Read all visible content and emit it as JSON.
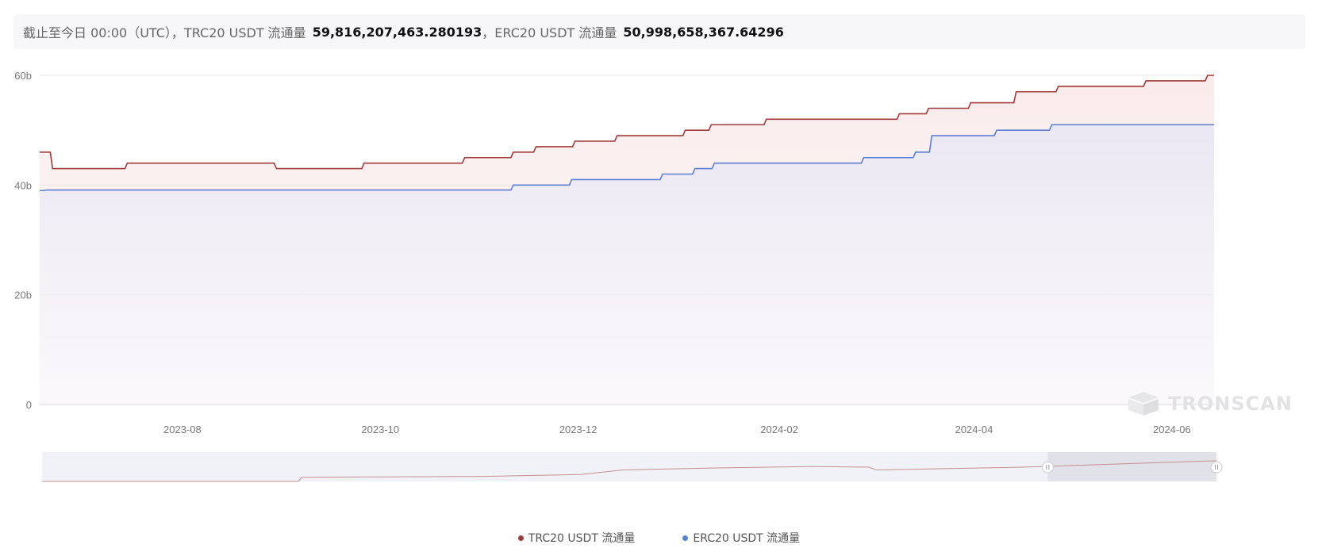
{
  "header": {
    "prefix": "截止至今日 00:00（UTC），",
    "trc_label": "TRC20 USDT 流通量",
    "trc_value": "59,816,207,463.280193",
    "sep": "，",
    "erc_label": "ERC20 USDT 流通量",
    "erc_value": "50,998,658,367.64296"
  },
  "watermark": "TRONSCAN",
  "colors": {
    "trc": "#a23a3a",
    "erc": "#5b7fd1",
    "grid": "#e6e6ea",
    "axis_text": "#777777"
  },
  "chart_data": {
    "type": "line",
    "title": "",
    "xlabel": "",
    "ylabel": "",
    "ylim": [
      0,
      60
    ],
    "yticks": [
      "0",
      "20b",
      "40b",
      "60b"
    ],
    "xticks": [
      "2023-08",
      "2023-10",
      "2023-12",
      "2024-02",
      "2024-04",
      "2024-06"
    ],
    "x_range": [
      "2023-06-18",
      "2024-06-14"
    ],
    "grid": "horizontal",
    "legend_position": "bottom",
    "series": [
      {
        "name": "TRC20 USDT 流通量",
        "step": true,
        "points": [
          [
            "2023-06-18",
            46
          ],
          [
            "2023-06-22",
            43
          ],
          [
            "2023-07-15",
            44
          ],
          [
            "2023-08-30",
            43
          ],
          [
            "2023-09-26",
            44
          ],
          [
            "2023-10-27",
            45
          ],
          [
            "2023-11-11",
            46
          ],
          [
            "2023-11-18",
            47
          ],
          [
            "2023-11-30",
            48
          ],
          [
            "2023-12-13",
            49
          ],
          [
            "2024-01-03",
            50
          ],
          [
            "2024-01-11",
            51
          ],
          [
            "2024-01-28",
            52
          ],
          [
            "2024-03-09",
            53
          ],
          [
            "2024-03-18",
            54
          ],
          [
            "2024-03-31",
            55
          ],
          [
            "2024-04-14",
            57
          ],
          [
            "2024-04-27",
            58
          ],
          [
            "2024-05-24",
            59
          ],
          [
            "2024-06-12",
            60
          ]
        ]
      },
      {
        "name": "ERC20 USDT 流通量",
        "step": true,
        "points": [
          [
            "2023-06-18",
            39
          ],
          [
            "2023-06-20",
            39.1
          ],
          [
            "2023-11-11",
            40
          ],
          [
            "2023-11-29",
            41
          ],
          [
            "2023-12-27",
            42
          ],
          [
            "2024-01-06",
            43
          ],
          [
            "2024-01-12",
            44
          ],
          [
            "2024-02-27",
            45
          ],
          [
            "2024-03-14",
            46
          ],
          [
            "2024-03-19",
            49
          ],
          [
            "2024-04-08",
            50
          ],
          [
            "2024-04-25",
            51
          ],
          [
            "2024-06-14",
            51
          ]
        ]
      }
    ],
    "overview": {
      "points": [
        [
          "2023-06-18",
          0.0
        ],
        [
          "2023-09-05",
          0.0
        ],
        [
          "2023-09-06",
          0.18
        ],
        [
          "2023-11-01",
          0.22
        ],
        [
          "2023-12-01",
          0.3
        ],
        [
          "2023-12-14",
          0.5
        ],
        [
          "2024-01-10",
          0.58
        ],
        [
          "2024-02-10",
          0.65
        ],
        [
          "2024-02-28",
          0.62
        ],
        [
          "2024-03-01",
          0.5
        ],
        [
          "2024-04-15",
          0.62
        ],
        [
          "2024-06-14",
          0.9
        ]
      ],
      "window_start": "2024-04-23",
      "window_end": "2024-06-14"
    }
  }
}
